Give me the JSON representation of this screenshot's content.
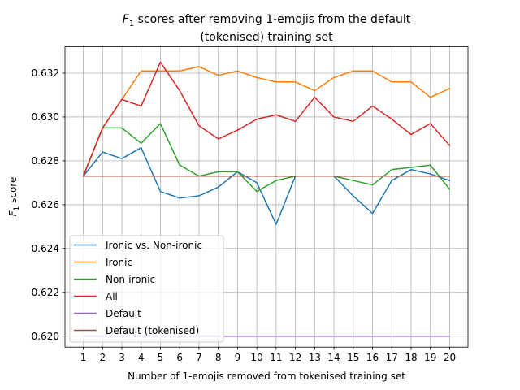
{
  "chart_data": {
    "type": "line",
    "title_line1_prefix": "F",
    "title_line1_sub": "1",
    "title_line1_rest": " scores after removing 1-emojis from the default",
    "title_line2": "(tokenised) training set",
    "xlabel": "Number of 1-emojis removed from tokenised training set",
    "ylabel_prefix": "F",
    "ylabel_sub": "1",
    "ylabel_rest": " score",
    "x": [
      1,
      2,
      3,
      4,
      5,
      6,
      7,
      8,
      9,
      10,
      11,
      12,
      13,
      14,
      15,
      16,
      17,
      18,
      19,
      20
    ],
    "x_tick_labels": [
      "1",
      "2",
      "3",
      "4",
      "5",
      "6",
      "7",
      "8",
      "9",
      "10",
      "11",
      "12",
      "13",
      "14",
      "15",
      "16",
      "17",
      "18",
      "19",
      "20"
    ],
    "y_ticks": [
      0.62,
      0.622,
      0.624,
      0.626,
      0.628,
      0.63,
      0.632
    ],
    "y_tick_labels": [
      "0.620",
      "0.622",
      "0.624",
      "0.626",
      "0.628",
      "0.630",
      "0.632"
    ],
    "xlim": [
      0.05,
      20.95
    ],
    "ylim": [
      0.6195,
      0.6332
    ],
    "grid": true,
    "legend_position": "lower-left",
    "series": [
      {
        "name": "Ironic vs. Non-ironic",
        "color": "#1f77b4",
        "values": [
          0.6273,
          0.6284,
          0.6281,
          0.6286,
          0.6266,
          0.6263,
          0.6264,
          0.6268,
          0.6275,
          0.627,
          0.6251,
          0.6273,
          0.6273,
          0.6273,
          0.6264,
          0.6256,
          0.6271,
          0.6276,
          0.6274,
          0.6271
        ]
      },
      {
        "name": "Ironic",
        "color": "#ff7f0e",
        "values": [
          0.6273,
          0.6295,
          0.6308,
          0.6321,
          0.6321,
          0.6321,
          0.6323,
          0.6319,
          0.6321,
          0.6318,
          0.6316,
          0.6316,
          0.6312,
          0.6318,
          0.6321,
          0.6321,
          0.6316,
          0.6316,
          0.6309,
          0.6313
        ]
      },
      {
        "name": "Non-ironic",
        "color": "#2ca02c",
        "values": [
          0.6273,
          0.6295,
          0.6295,
          0.6288,
          0.6297,
          0.6278,
          0.6273,
          0.6275,
          0.6275,
          0.6266,
          0.6271,
          0.6273,
          0.6273,
          0.6273,
          0.6271,
          0.6269,
          0.6276,
          0.6277,
          0.6278,
          0.6267
        ]
      },
      {
        "name": "All",
        "color": "#d62728",
        "values": [
          0.6273,
          0.6295,
          0.6308,
          0.6305,
          0.6325,
          0.6312,
          0.6296,
          0.629,
          0.6294,
          0.6299,
          0.6301,
          0.6298,
          0.6309,
          0.63,
          0.6298,
          0.6305,
          0.6299,
          0.6292,
          0.6297,
          0.6287
        ]
      },
      {
        "name": "Default",
        "color": "#9467bd",
        "values": [
          0.62,
          0.62,
          0.62,
          0.62,
          0.62,
          0.62,
          0.62,
          0.62,
          0.62,
          0.62,
          0.62,
          0.62,
          0.62,
          0.62,
          0.62,
          0.62,
          0.62,
          0.62,
          0.62,
          0.62
        ]
      },
      {
        "name": "Default (tokenised)",
        "color": "#8c564b",
        "values": [
          0.6273,
          0.6273,
          0.6273,
          0.6273,
          0.6273,
          0.6273,
          0.6273,
          0.6273,
          0.6273,
          0.6273,
          0.6273,
          0.6273,
          0.6273,
          0.6273,
          0.6273,
          0.6273,
          0.6273,
          0.6273,
          0.6273,
          0.6273
        ]
      }
    ]
  }
}
